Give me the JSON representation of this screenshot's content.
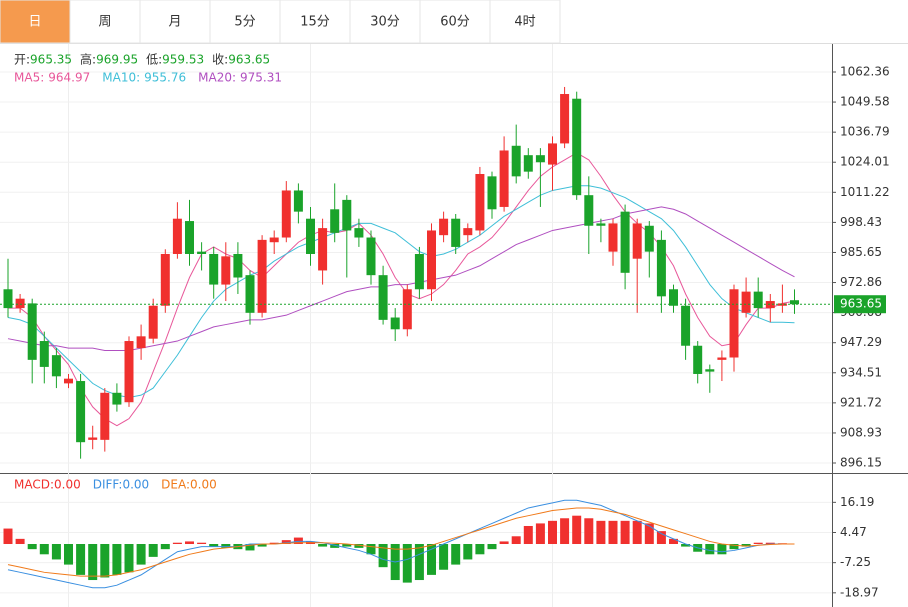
{
  "tabs": [
    "日",
    "周",
    "月",
    "5分",
    "15分",
    "30分",
    "60分",
    "4时"
  ],
  "active_tab": 0,
  "chart_data": [
    {
      "type": "candlestick",
      "header_labels": [
        "开:",
        "高:",
        "低:",
        "收:"
      ],
      "open": [
        970,
        962,
        964,
        948,
        942,
        930,
        931,
        906,
        906,
        926,
        922,
        945,
        949,
        963,
        985,
        999,
        986,
        985,
        972,
        985,
        976,
        960,
        990,
        992,
        1012,
        1000,
        978,
        1004,
        1008,
        996,
        992,
        976,
        958,
        953,
        985,
        970,
        993,
        1000,
        993,
        995,
        1018,
        1005,
        1031,
        1027,
        1027,
        1023,
        1032,
        1051,
        1010,
        998,
        986,
        1003,
        983,
        997,
        991,
        970,
        963,
        946,
        936,
        940,
        941,
        960,
        969,
        962,
        963,
        965.35
      ],
      "high": [
        983,
        968,
        966,
        952,
        945,
        934,
        934,
        912,
        928,
        930,
        950,
        955,
        966,
        987,
        1007,
        1008,
        990,
        988,
        990,
        990,
        978,
        993,
        995,
        1016,
        1015,
        1005,
        1000,
        1015,
        1010,
        1000,
        995,
        980,
        962,
        972,
        988,
        998,
        1003,
        1002,
        998,
        1022,
        1020,
        1035,
        1040,
        1030,
        1030,
        1035,
        1056,
        1054,
        1018,
        1000,
        1000,
        1006,
        1000,
        999,
        995,
        972,
        966,
        948,
        938,
        944,
        972,
        975,
        975,
        968,
        972,
        969.95
      ],
      "low": [
        958,
        960,
        930,
        930,
        928,
        928,
        898,
        902,
        901,
        918,
        920,
        940,
        947,
        960,
        983,
        980,
        978,
        966,
        965,
        968,
        955,
        958,
        985,
        990,
        998,
        980,
        972,
        990,
        975,
        988,
        972,
        955,
        948,
        950,
        966,
        965,
        990,
        985,
        990,
        993,
        1000,
        1003,
        1015,
        1017,
        1005,
        1012,
        1030,
        1008,
        985,
        990,
        980,
        970,
        960,
        975,
        960,
        960,
        940,
        930,
        926,
        931,
        935,
        958,
        958,
        956,
        960,
        959.53
      ],
      "close": [
        962,
        966,
        940,
        937,
        933,
        932,
        905,
        907,
        926,
        921,
        948,
        950,
        963,
        985,
        1000,
        985,
        985,
        972,
        984,
        975,
        960,
        991,
        992,
        1012,
        1003,
        985,
        996,
        994,
        995,
        992,
        976,
        957,
        953,
        970,
        970,
        995,
        1000,
        988,
        996,
        1019,
        1004,
        1029,
        1018,
        1020,
        1024,
        1032,
        1053,
        1010,
        997,
        997,
        998,
        977,
        998,
        986,
        967,
        963,
        946,
        934,
        935,
        941,
        970,
        969,
        962,
        965,
        964,
        963.65
      ],
      "series": [
        {
          "name": "MA5:",
          "color": "#e8589a",
          "values": [
            962,
            962,
            958,
            950,
            944,
            938,
            928,
            920,
            915,
            912,
            915,
            922,
            935,
            948,
            962,
            975,
            985,
            988,
            985,
            983,
            978,
            975,
            980,
            985,
            990,
            993,
            995,
            994,
            995,
            998,
            993,
            985,
            975,
            968,
            966,
            968,
            972,
            978,
            985,
            988,
            992,
            998,
            1005,
            1012,
            1018,
            1022,
            1025,
            1028,
            1025,
            1018,
            1010,
            1003,
            998,
            994,
            988,
            980,
            968,
            958,
            950,
            946,
            947,
            955,
            962,
            962,
            964,
            964.97
          ]
        },
        {
          "name": "MA10:",
          "color": "#3fbfd8",
          "values": [
            958,
            957,
            955,
            950,
            945,
            940,
            935,
            930,
            927,
            925,
            924,
            925,
            928,
            935,
            942,
            950,
            958,
            965,
            970,
            973,
            976,
            978,
            982,
            985,
            988,
            990,
            992,
            994,
            996,
            998,
            998,
            996,
            994,
            990,
            986,
            984,
            985,
            987,
            990,
            993,
            997,
            1001,
            1004,
            1007,
            1010,
            1012,
            1013,
            1014,
            1014,
            1013,
            1011,
            1009,
            1006,
            1003,
            1000,
            995,
            988,
            980,
            972,
            966,
            962,
            960,
            958,
            956,
            956,
            955.76
          ]
        },
        {
          "name": "MA20:",
          "color": "#b04fc0",
          "values": [
            949,
            948,
            947,
            946,
            946,
            945,
            945,
            945,
            944,
            944,
            944,
            945,
            946,
            947,
            948,
            950,
            952,
            954,
            955,
            956,
            957,
            957,
            958,
            959,
            961,
            963,
            965,
            967,
            969,
            970,
            971,
            971,
            972,
            972,
            973,
            974,
            975,
            976,
            978,
            980,
            983,
            986,
            989,
            991,
            993,
            995,
            996,
            997,
            998,
            999,
            1000,
            1002,
            1003,
            1004,
            1005,
            1004,
            1002,
            999,
            996,
            993,
            990,
            987,
            984,
            981,
            978,
            975.31
          ]
        }
      ],
      "up_color": "#f0302e",
      "down_color": "#1aa32a",
      "ylim": [
        892.33,
        1074.26
      ],
      "yticks": [
        896.15,
        908.93,
        921.72,
        934.51,
        947.29,
        960.08,
        972.86,
        985.65,
        998.43,
        1011.22,
        1024.01,
        1036.79,
        1049.58,
        1062.36
      ],
      "grid": true
    },
    {
      "type": "macd",
      "series": [
        {
          "name": "MACD:",
          "color": "#f0302e",
          "down_color": "#1aa32a",
          "last_label": "0.00",
          "values": [
            6,
            2,
            -2,
            -4,
            -6,
            -8,
            -12,
            -14,
            -13,
            -12,
            -11,
            -8,
            -5,
            -2,
            0.5,
            1,
            0.5,
            -1,
            -1.5,
            -2,
            -2.5,
            -1,
            0.5,
            1.5,
            2.5,
            1,
            -1,
            -1.5,
            -1,
            -1.5,
            -4,
            -9,
            -14,
            -15,
            -14,
            -12,
            -10,
            -8,
            -6,
            -4,
            -2,
            1,
            3,
            7,
            8,
            9,
            10,
            11,
            10,
            9,
            9,
            9,
            9,
            8,
            5,
            2,
            -1,
            -3,
            -4,
            -4,
            -2,
            -1,
            0.5,
            0.5,
            0.3,
            0
          ]
        },
        {
          "name": "DIFF:",
          "color": "#3a8fe0",
          "last_label": "0.00",
          "values": [
            -10,
            -11,
            -12,
            -13,
            -14,
            -15,
            -16,
            -17,
            -17,
            -16,
            -14,
            -12,
            -9,
            -6,
            -3,
            -2,
            -1,
            -1,
            -1,
            -1,
            0,
            0,
            0,
            0.5,
            1,
            1,
            0.5,
            -0.5,
            -1.5,
            -2.5,
            -4,
            -6,
            -7,
            -6,
            -4,
            -2,
            0,
            2,
            4,
            6,
            8,
            10,
            12,
            14,
            15,
            16,
            17,
            17,
            16,
            15,
            13,
            11,
            9,
            7,
            4,
            2,
            0,
            -1.5,
            -2.5,
            -3,
            -2.5,
            -1.5,
            -0.5,
            0,
            0,
            0
          ]
        },
        {
          "name": "DEA:",
          "color": "#f07a1a",
          "last_label": "0.00",
          "values": [
            -8,
            -9,
            -10,
            -11,
            -11.5,
            -12,
            -12.5,
            -12.5,
            -12.5,
            -12,
            -11,
            -10,
            -8.5,
            -7,
            -5.5,
            -4,
            -3,
            -2,
            -1.5,
            -1,
            -0.5,
            0,
            0,
            0.3,
            0.5,
            0.5,
            0.5,
            0.3,
            0,
            -0.5,
            -1,
            -1.5,
            -2,
            -2,
            -1.5,
            -0.5,
            1,
            2.5,
            4,
            5.5,
            7,
            8.5,
            10,
            11,
            12,
            13,
            13.5,
            14,
            14,
            13.5,
            12.5,
            11.5,
            10,
            8.5,
            7,
            5.5,
            4,
            2.5,
            1,
            0,
            -0.5,
            -0.8,
            -0.5,
            -0.2,
            0,
            0
          ]
        }
      ],
      "ylim": [
        -23.7,
        27.2
      ],
      "yticks": [
        -18.97,
        -7.25,
        4.47,
        16.19
      ],
      "grid": true
    }
  ]
}
